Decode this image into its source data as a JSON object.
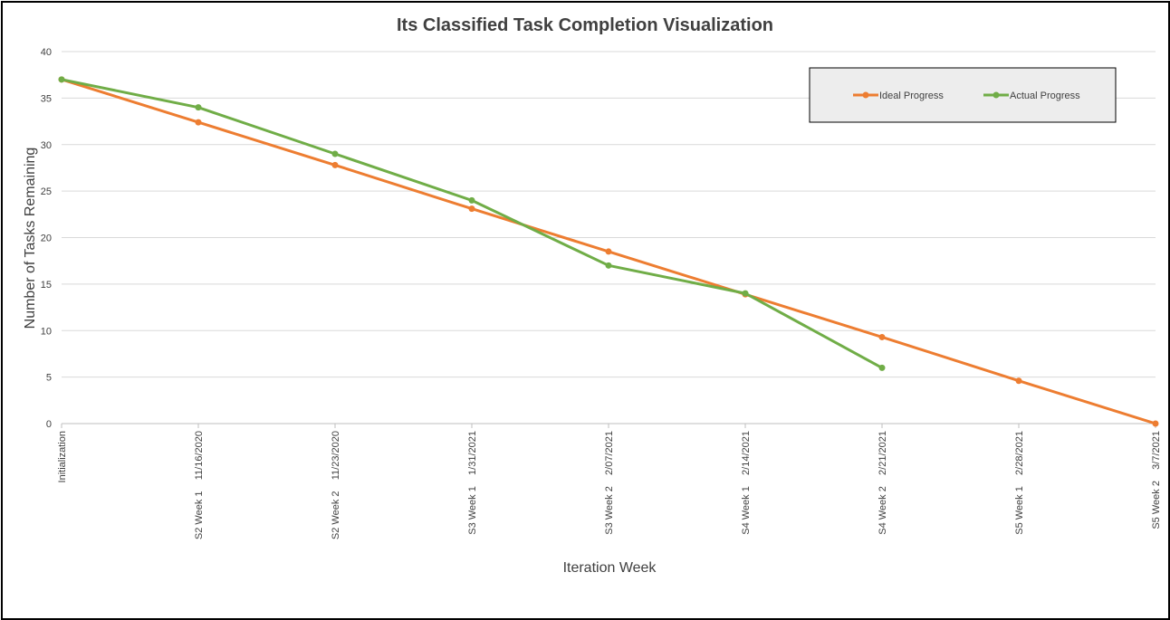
{
  "chart_data": {
    "type": "line",
    "title": "Its Classified Task Completion Visualization",
    "xlabel": "Iteration Week",
    "ylabel": "Number of Tasks Remaining",
    "categories": [
      "Initialization",
      "S2 Week 1    11/16/2020",
      "S2 Week 2    11/23/2020",
      "S3 Week 1    1/31/2021",
      "S3 Week 2    2/07/2021",
      "S4 Week 1    2/14/2021",
      "S4 Week 2    2/21/2021",
      "S5 Week 1    2/28/2021",
      "S5 Week 2    3/7/2021"
    ],
    "ylim": [
      0,
      40
    ],
    "yticks": [
      "0",
      "5",
      "10",
      "15",
      "20",
      "25",
      "30",
      "35",
      "40"
    ],
    "grid": true,
    "legend_position": "top-right",
    "series": [
      {
        "name": "Ideal Progress",
        "color": "#ED7D31",
        "values": [
          37,
          32.4,
          27.8,
          23.1,
          18.5,
          13.9,
          9.3,
          4.6,
          0
        ]
      },
      {
        "name": "Actual Progress",
        "color": "#70AD47",
        "values": [
          37,
          34,
          29,
          24,
          17,
          14,
          6,
          null,
          null
        ]
      }
    ]
  }
}
